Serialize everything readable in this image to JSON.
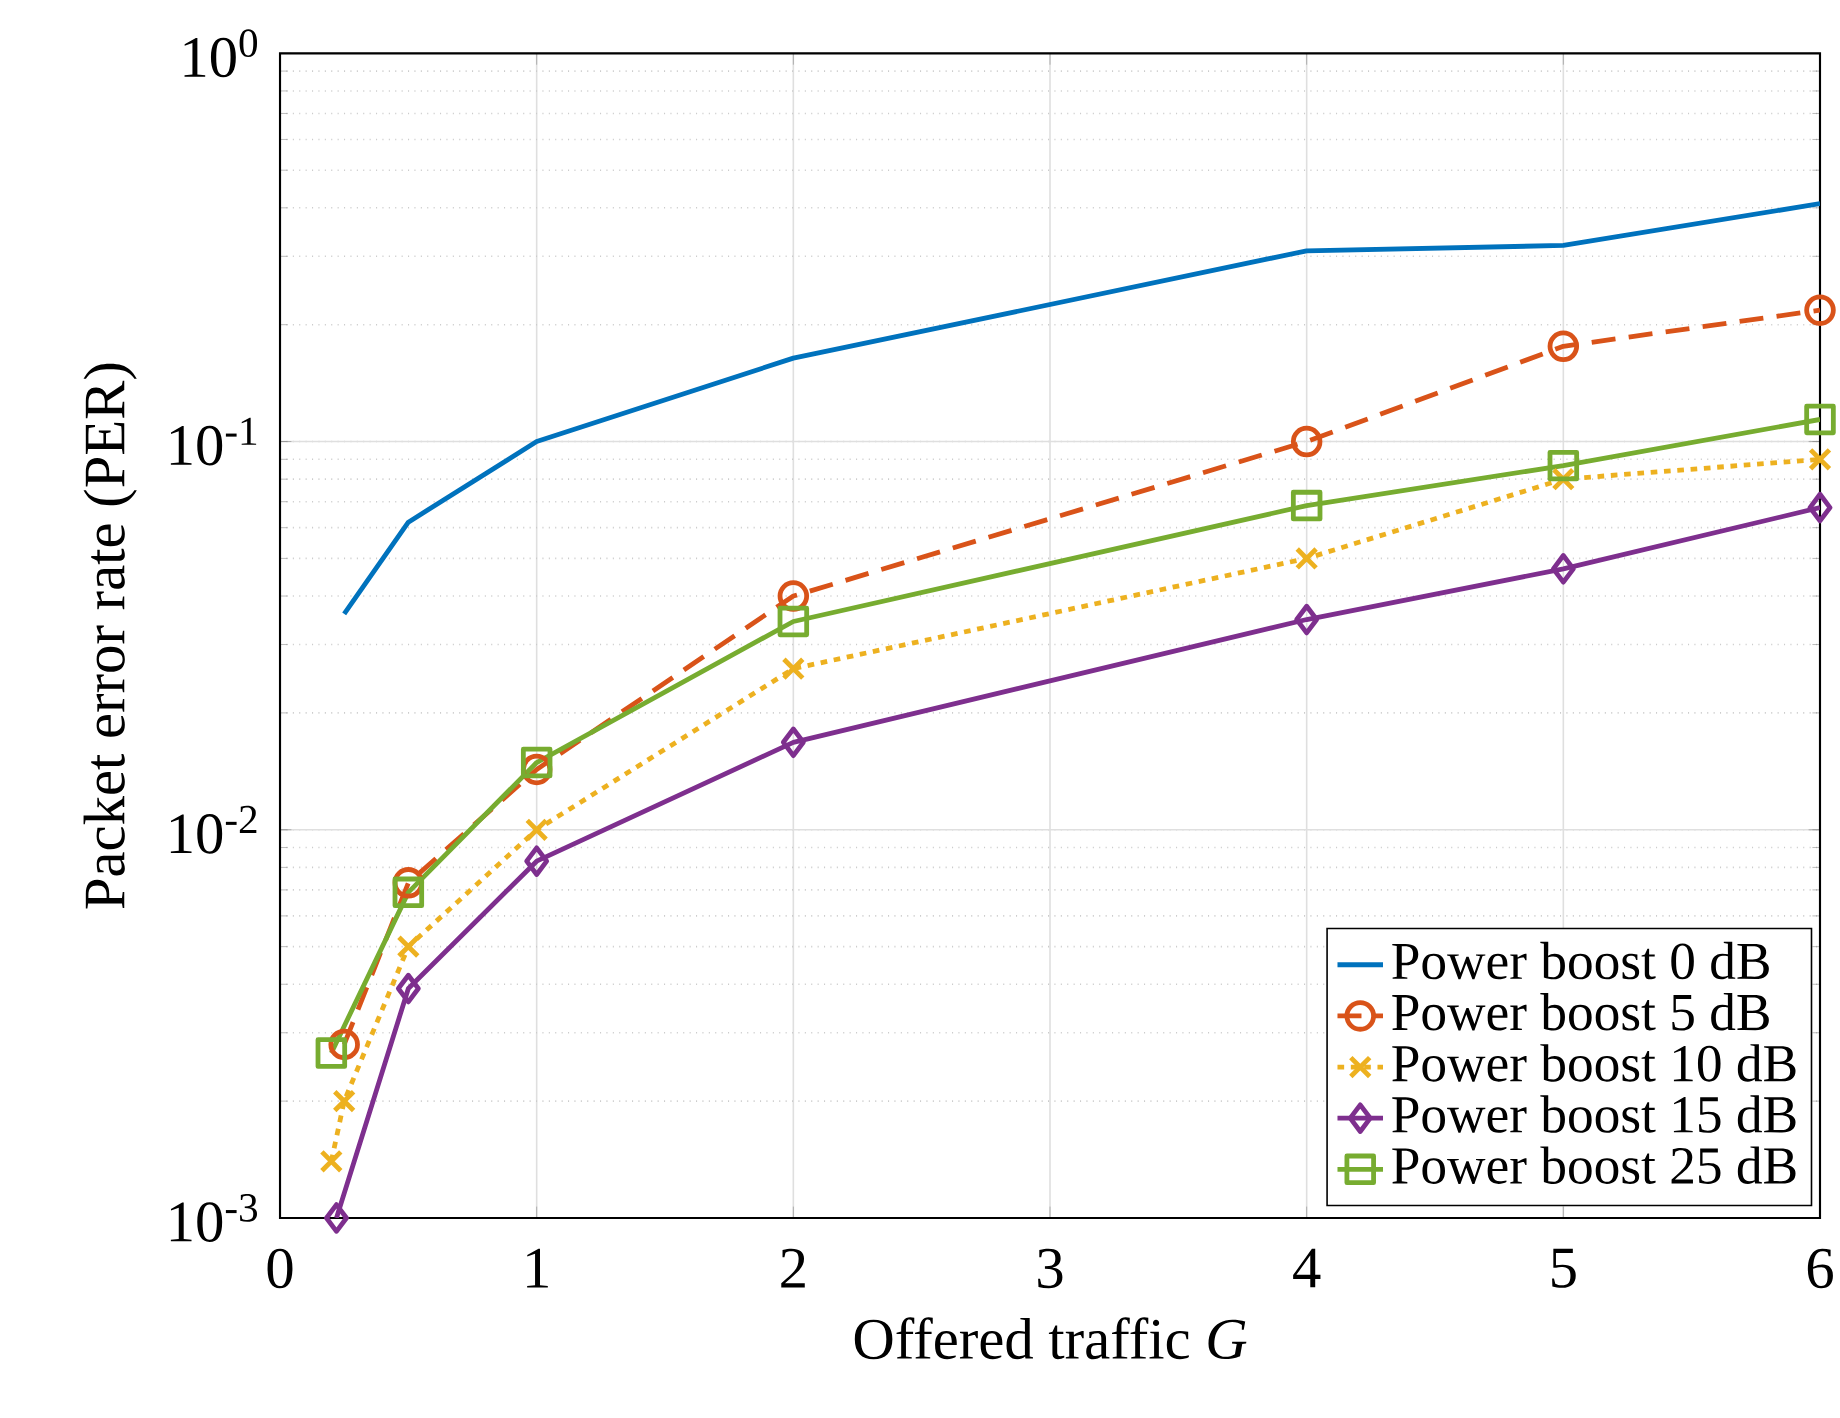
{
  "chart_data": {
    "type": "line",
    "xlabel": "Offered traffic *G*",
    "ylabel": "Packet error rate (PER)",
    "log": "y",
    "grid": true,
    "legend": "bottom right",
    "xlim": [
      0,
      6
    ],
    "xticks": [
      0,
      1,
      2,
      3,
      4,
      5,
      6
    ],
    "ylim": [
      0.001,
      1
    ],
    "yticks": [
      {
        "value": 0.001,
        "label": "10$^{-3}$"
      },
      {
        "value": 0.01,
        "label": "10$^{-2}$"
      },
      {
        "value": 0.1,
        "label": "10$^{-1}$"
      },
      {
        "value": 1,
        "label": "10$^{0}$"
      }
    ],
    "series": [
      {
        "name": "Power boost 0 dB",
        "color": "#0072bd",
        "marker": "none",
        "line_style": "solid",
        "x": [
          0.25,
          0.5,
          1,
          2,
          4,
          5,
          6
        ],
        "values": [
          0.036,
          0.062,
          0.1,
          0.164,
          0.31,
          0.32,
          0.41
        ]
      },
      {
        "name": "Power boost 5 dB",
        "color": "#d95319",
        "marker": "circle",
        "line_style": "dashed",
        "x": [
          0.25,
          0.5,
          1,
          2,
          4,
          5,
          6
        ],
        "values": [
          0.0028,
          0.0073,
          0.0143,
          0.04,
          0.1,
          0.176,
          0.218
        ]
      },
      {
        "name": "Power boost 10 dB",
        "color": "#edb120",
        "marker": "cross",
        "line_style": "dotted",
        "x": [
          0.2,
          0.25,
          0.5,
          1,
          2,
          4,
          5,
          6
        ],
        "values": [
          0.0014,
          0.002,
          0.005,
          0.01,
          0.026,
          0.05,
          0.08,
          0.09
        ]
      },
      {
        "name": "Power boost 15 dB",
        "color": "#7e2f8e",
        "marker": "diamond",
        "line_style": "solid",
        "x": [
          0.22,
          0.5,
          1,
          2,
          4,
          5,
          6
        ],
        "values": [
          0.001,
          0.0039,
          0.0083,
          0.0168,
          0.0348,
          0.047,
          0.0676
        ]
      },
      {
        "name": "Power boost 25 dB",
        "color": "#77ac30",
        "marker": "square",
        "line_style": "solid",
        "x": [
          0.2,
          0.5,
          1,
          2,
          4,
          5,
          6
        ],
        "values": [
          0.00266,
          0.0069,
          0.0149,
          0.0344,
          0.0684,
          0.0867,
          0.114
        ]
      }
    ]
  }
}
